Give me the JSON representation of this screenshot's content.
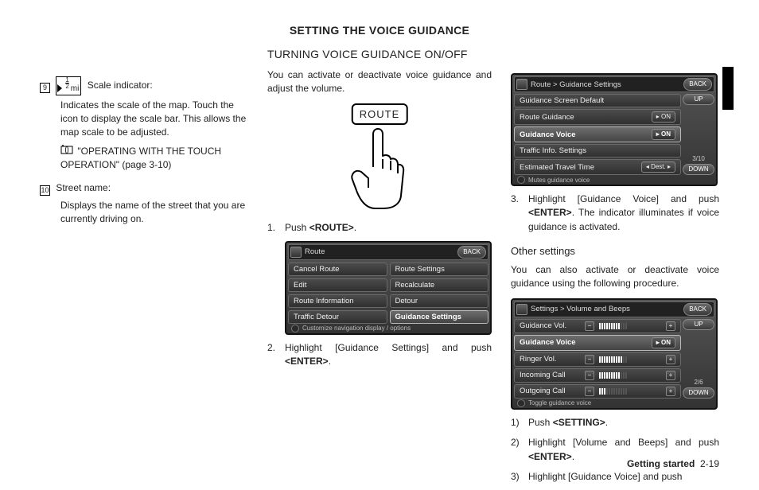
{
  "leftcol": {
    "item9": {
      "num": "9",
      "scale_unit_top": "1",
      "scale_unit_bot": "2",
      "scale_unit_suffix": "mi",
      "label": "Scale indicator:",
      "desc": "Indicates the scale of the map. Touch the icon to display the scale bar. This allows the map scale to be adjusted.",
      "ref": "\"OPERATING WITH THE TOUCH OPERATION\" (page 3-10)"
    },
    "item10": {
      "num": "10",
      "label": "Street name:",
      "desc": "Displays the name of the street that you are currently driving on."
    }
  },
  "main_title": "SETTING THE VOICE GUIDANCE",
  "sub_title": "TURNING VOICE GUIDANCE ON/OFF",
  "intro": "You can activate or deactivate voice guidance and adjust the volume.",
  "route_label": "ROUTE",
  "step1": {
    "n": "1.",
    "text_pre": "Push ",
    "btn": "<ROUTE>",
    "text_post": "."
  },
  "step2": {
    "n": "2.",
    "text": "Highlight [Guidance Settings] and push ",
    "btn": "<ENTER>",
    "tail": "."
  },
  "step3": {
    "n": "3.",
    "text": "Highlight [Guidance Voice] and push ",
    "btn": "<ENTER>",
    "tail": ". The indicator illuminates if voice guidance is activated."
  },
  "other_title": "Other settings",
  "other_intro": "You can also activate or deactivate voice guidance using the following procedure.",
  "ostep1": {
    "n": "1)",
    "text": "Push ",
    "btn": "<SETTING>",
    "tail": "."
  },
  "ostep2": {
    "n": "2)",
    "text": "Highlight [Volume and Beeps] and push ",
    "btn": "<ENTER>",
    "tail": "."
  },
  "ostep3": {
    "n": "3)",
    "text": "Highlight [Guidance Voice] and push"
  },
  "footer": {
    "section": "Getting started",
    "page": "2-19"
  },
  "dev_route": {
    "crumb": "Route",
    "back": "BACK",
    "items": [
      [
        "Cancel Route",
        "Route Settings"
      ],
      [
        "Edit",
        "Recalculate"
      ],
      [
        "Route Information",
        "Detour"
      ],
      [
        "Traffic Detour",
        "Guidance Settings"
      ]
    ],
    "hint": "Customize navigation display / options"
  },
  "dev_guidance": {
    "crumb": "Route > Guidance Settings",
    "back": "BACK",
    "up": "UP",
    "down": "DOWN",
    "counter": "3/10",
    "items": [
      {
        "label": "Guidance Screen Default",
        "ctrl": null
      },
      {
        "label": "Route Guidance",
        "ctrl": "ON"
      },
      {
        "label": "Guidance Voice",
        "hl": true,
        "ctrl": "ON"
      },
      {
        "label": "Traffic Info. Settings",
        "ctrl": null
      },
      {
        "label": "Estimated Travel Time",
        "ctrl": "Dest."
      }
    ],
    "hint": "Mutes guidance voice"
  },
  "dev_volume": {
    "crumb": "Settings > Volume and Beeps",
    "back": "BACK",
    "up": "UP",
    "down": "DOWN",
    "counter": "2/6",
    "items": [
      {
        "label": "Guidance Vol.",
        "type": "slider",
        "on": 9,
        "off": 3
      },
      {
        "label": "Guidance Voice",
        "type": "on",
        "val": "ON",
        "hl": true
      },
      {
        "label": "Ringer Vol.",
        "type": "slider",
        "on": 10,
        "off": 2
      },
      {
        "label": "Incoming Call",
        "type": "slider",
        "on": 9,
        "off": 3
      },
      {
        "label": "Outgoing Call",
        "type": "slider",
        "on": 3,
        "off": 9
      }
    ],
    "hint": "Toggle guidance voice"
  }
}
